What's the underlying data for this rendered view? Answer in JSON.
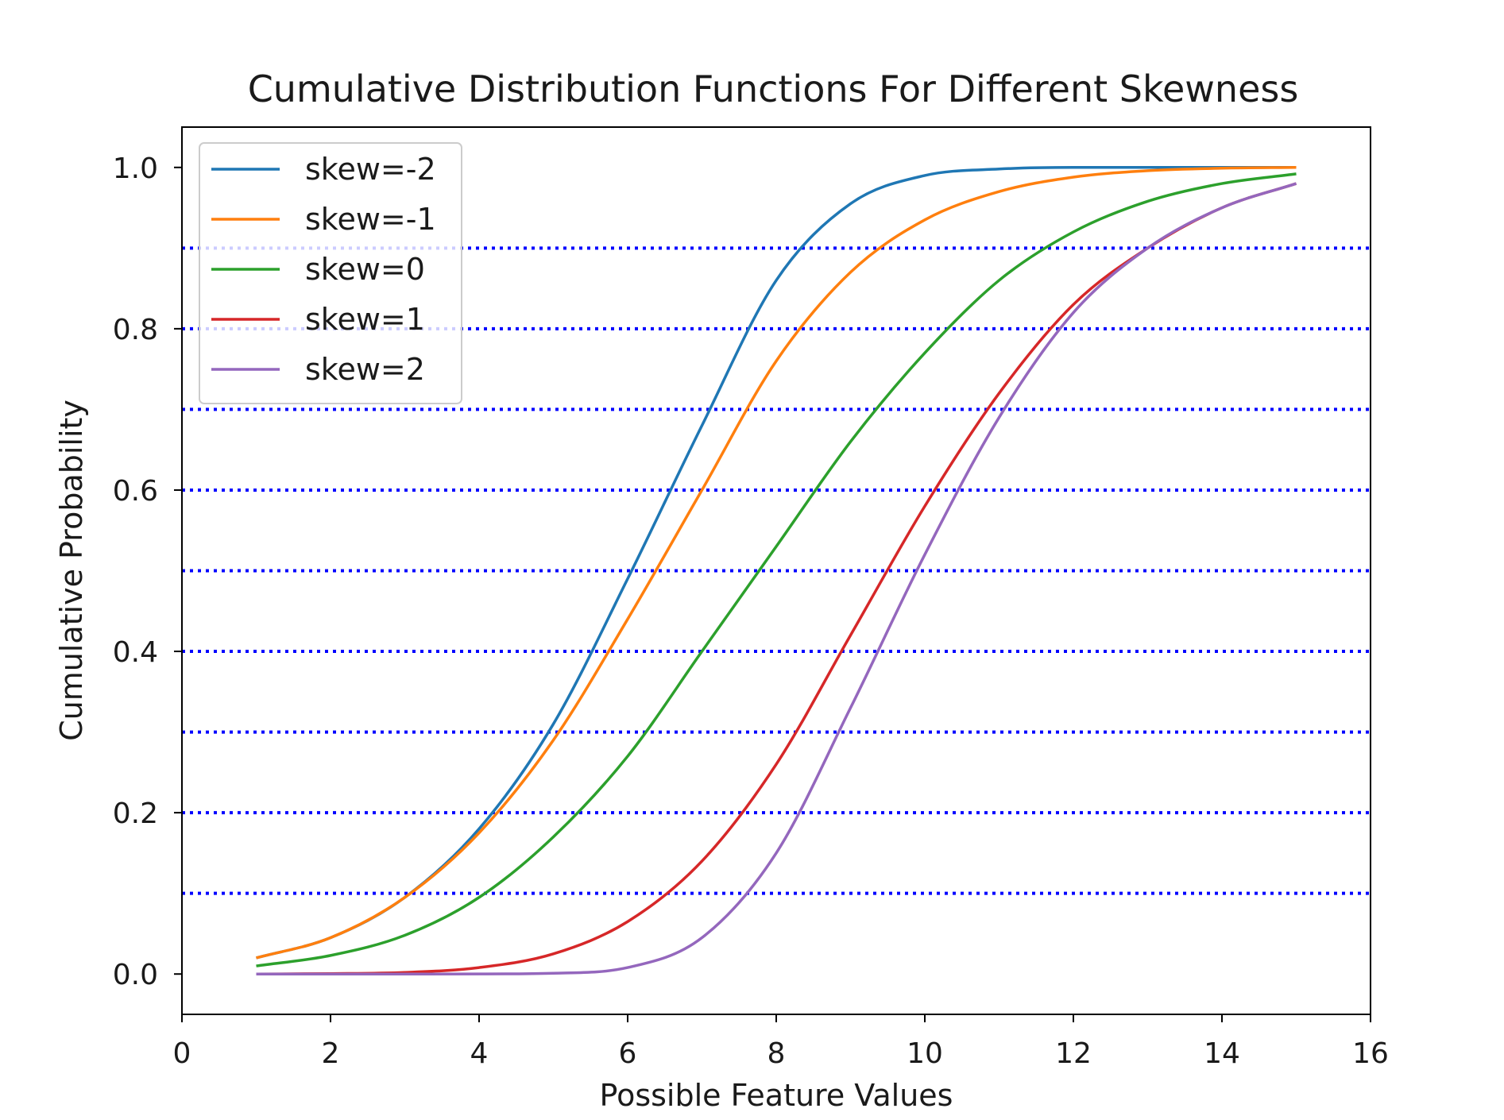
{
  "chart_data": {
    "type": "line",
    "title": "Cumulative Distribution Functions For Different Skewness",
    "xlabel": "Possible Feature Values",
    "ylabel": "Cumulative Probability",
    "xlim": [
      0,
      16
    ],
    "ylim": [
      -0.05,
      1.05
    ],
    "xticks": [
      0,
      2,
      4,
      6,
      8,
      10,
      12,
      14,
      16
    ],
    "xtick_labels": [
      "0",
      "2",
      "4",
      "6",
      "8",
      "10",
      "12",
      "14",
      "16"
    ],
    "yticks": [
      0.0,
      0.2,
      0.4,
      0.6,
      0.8,
      1.0
    ],
    "ytick_labels": [
      "0.0",
      "0.2",
      "0.4",
      "0.6",
      "0.8",
      "1.0"
    ],
    "reference_lines": {
      "orientation": "horizontal",
      "style": "dotted",
      "color": "#0000ff",
      "y": [
        0.1,
        0.2,
        0.3,
        0.4,
        0.5,
        0.6,
        0.7,
        0.8,
        0.9
      ]
    },
    "legend": {
      "placement": "upper-left"
    },
    "x": [
      1,
      2,
      3,
      4,
      5,
      6,
      7,
      8,
      9,
      10,
      11,
      12,
      13,
      14,
      15
    ],
    "series": [
      {
        "name": "skew=-2",
        "color": "#1f77b4",
        "values": [
          0.02,
          0.045,
          0.095,
          0.18,
          0.31,
          0.49,
          0.68,
          0.86,
          0.955,
          0.99,
          0.998,
          1.0,
          1.0,
          1.0,
          1.0
        ]
      },
      {
        "name": "skew=-1",
        "color": "#ff7f0e",
        "values": [
          0.02,
          0.045,
          0.095,
          0.175,
          0.29,
          0.44,
          0.6,
          0.76,
          0.87,
          0.935,
          0.97,
          0.988,
          0.996,
          0.999,
          1.0
        ]
      },
      {
        "name": "skew=0",
        "color": "#2ca02c",
        "values": [
          0.01,
          0.023,
          0.048,
          0.095,
          0.17,
          0.27,
          0.4,
          0.53,
          0.66,
          0.77,
          0.86,
          0.92,
          0.958,
          0.98,
          0.992
        ]
      },
      {
        "name": "skew=1",
        "color": "#d62728",
        "values": [
          0.0,
          0.0005,
          0.002,
          0.008,
          0.025,
          0.065,
          0.14,
          0.26,
          0.42,
          0.58,
          0.72,
          0.83,
          0.9,
          0.95,
          0.98
        ]
      },
      {
        "name": "skew=2",
        "color": "#9467bd",
        "values": [
          0.0,
          0.0,
          0.0,
          0.0001,
          0.001,
          0.008,
          0.045,
          0.15,
          0.33,
          0.52,
          0.69,
          0.82,
          0.9,
          0.95,
          0.98
        ]
      }
    ]
  }
}
